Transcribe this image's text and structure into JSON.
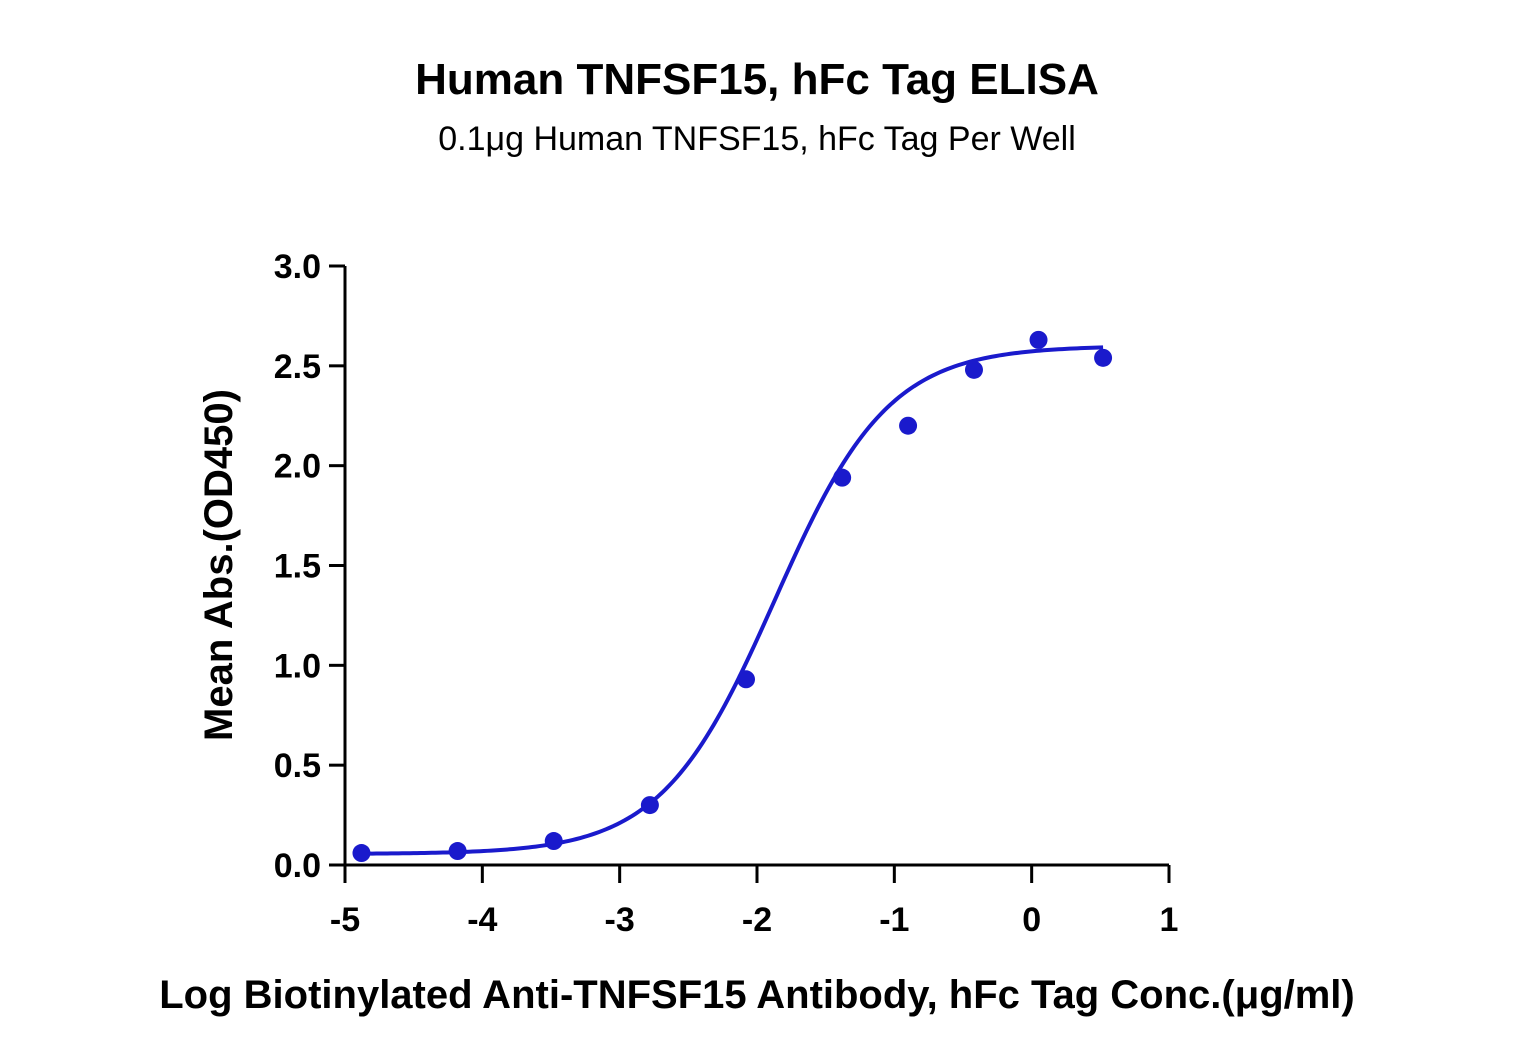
{
  "chart_data": {
    "type": "scatter",
    "title": "Human TNFSF15, hFc Tag ELISA",
    "subtitle": "0.1μg Human TNFSF15, hFc Tag Per Well",
    "xlabel": "Log Biotinylated Anti-TNFSF15 Antibody, hFc Tag Conc.(μg/ml)",
    "ylabel": "Mean Abs.(OD450)",
    "xlim": [
      -5,
      1
    ],
    "ylim": [
      0,
      3.0
    ],
    "x_ticks": [
      "-5",
      "-4",
      "-3",
      "-2",
      "-1",
      "0",
      "1"
    ],
    "y_ticks": [
      "0.0",
      "0.5",
      "1.0",
      "1.5",
      "2.0",
      "2.5",
      "3.0"
    ],
    "grid": false,
    "color": "#1a1acc",
    "series": [
      {
        "x": [
          -4.88,
          -4.18,
          -3.48,
          -2.78,
          -2.08,
          -1.38,
          -0.9,
          -0.42,
          0.05,
          0.52
        ],
        "y": [
          0.06,
          0.07,
          0.12,
          0.3,
          0.93,
          1.94,
          2.2,
          2.48,
          2.63,
          2.54
        ]
      }
    ],
    "fit": {
      "model": "4PL",
      "bottom": 0.055,
      "top": 2.6,
      "logEC50": -1.87,
      "hill": 1.05
    }
  }
}
